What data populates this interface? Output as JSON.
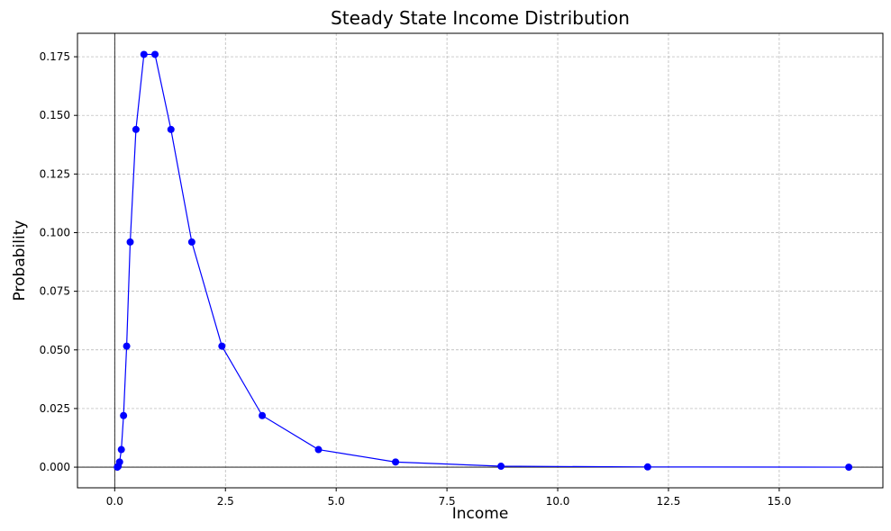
{
  "chart_data": {
    "type": "line",
    "title": "Steady State Income Distribution",
    "xlabel": "Income",
    "ylabel": "Probability",
    "xlim": [
      -0.84,
      17.34
    ],
    "ylim": [
      -0.0088,
      0.185
    ],
    "x_ticks": [
      0.0,
      2.5,
      5.0,
      7.5,
      10.0,
      12.5,
      15.0
    ],
    "x_tick_labels": [
      "0.0",
      "2.5",
      "5.0",
      "7.5",
      "10.0",
      "12.5",
      "15.0"
    ],
    "y_ticks": [
      0.0,
      0.025,
      0.05,
      0.075,
      0.1,
      0.125,
      0.15,
      0.175
    ],
    "y_tick_labels": [
      "0.000",
      "0.025",
      "0.050",
      "0.075",
      "0.100",
      "0.125",
      "0.150",
      "0.175"
    ],
    "grid": true,
    "reference_lines": {
      "x": 0,
      "y": 0
    },
    "color": "#0000ff",
    "marker": "circle",
    "series": [
      {
        "x": [
          0.06,
          0.08,
          0.11,
          0.15,
          0.2,
          0.27,
          0.35,
          0.48,
          0.66,
          0.91,
          1.27,
          1.74,
          2.42,
          3.33,
          4.6,
          6.34,
          8.72,
          12.03,
          16.57
        ],
        "y": [
          0.0,
          0.0004,
          0.0022,
          0.0075,
          0.022,
          0.0516,
          0.096,
          0.144,
          0.176,
          0.176,
          0.144,
          0.096,
          0.0516,
          0.022,
          0.0075,
          0.0022,
          0.0004,
          0.0001,
          0.0
        ]
      }
    ]
  }
}
